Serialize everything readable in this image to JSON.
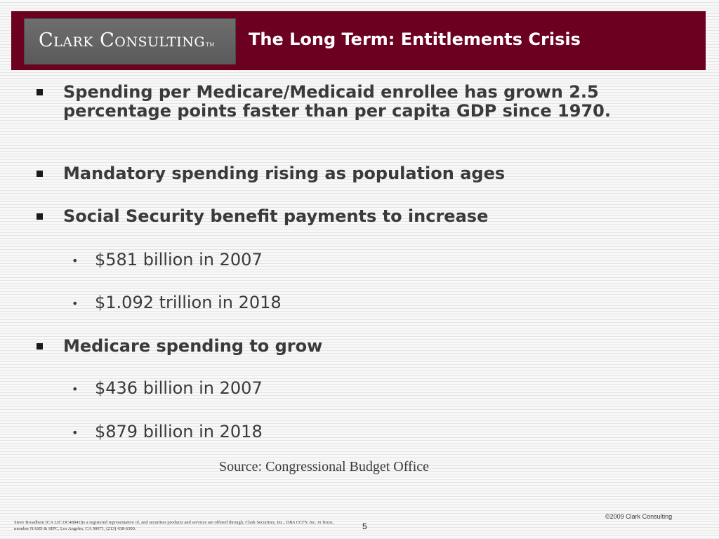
{
  "header": {
    "logo": {
      "part1": "Clark",
      "part2": "Consulting",
      "tm": "TM"
    },
    "title": "The Long Term: Entitlements Crisis",
    "colors": {
      "band": "#6c0020",
      "logo_bg": "#636363"
    }
  },
  "bullets": {
    "b1": "Spending per Medicare/Medicaid enrollee has grown 2.5 percentage points faster than per capita GDP since 1970.",
    "b2": "Mandatory spending rising as population ages",
    "b3": "Social Security benefit payments to increase",
    "b3_sub1": "$581 billion in 2007",
    "b3_sub2": "$1.092 trillion in 2018",
    "b4": "Medicare spending to grow",
    "b4_sub1": "$436 billion in 2007",
    "b4_sub2": "$879 billion in 2018"
  },
  "source": "Source: Congressional Budget Office",
  "footer": {
    "disclaimer_a": "Steve Broadbent  (CA LIC OC48841)is a registered representative of, and securities products and services are offered through, Clark Securities, Inc., ",
    "disclaimer_b": "DBA CCFS, Inc. in Texas",
    "disclaimer_c": ", member NASD & SIPC, Los Angeles, CA  90071, (213) 438-6300.",
    "page_number": "5",
    "copyright": "©2009 Clark Consulting"
  }
}
